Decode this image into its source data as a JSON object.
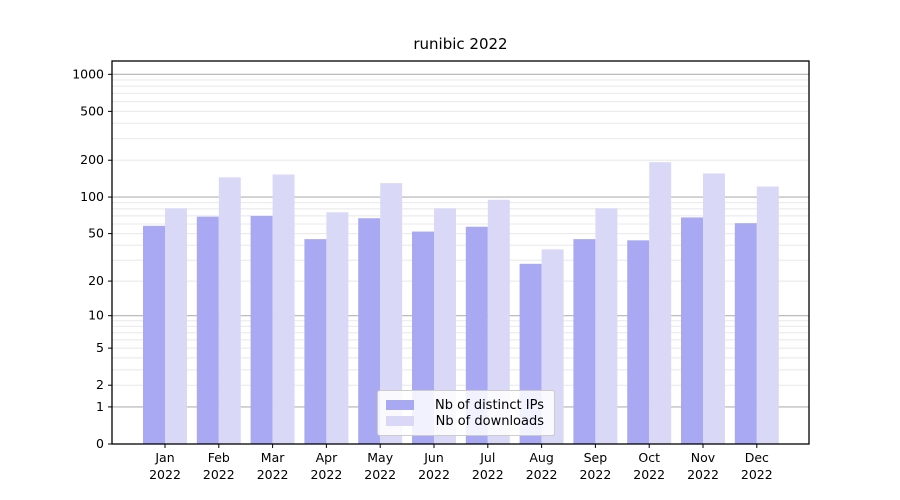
{
  "chart_data": {
    "type": "bar",
    "title": "runibic 2022",
    "xlabel": "",
    "ylabel": "",
    "yscale": "log1p",
    "ylim": [
      0,
      1283
    ],
    "yticks": [
      0,
      1,
      2,
      5,
      10,
      20,
      50,
      100,
      200,
      500,
      1000
    ],
    "grid": "on",
    "legend_position": "lower-center-inside",
    "categories": [
      "Jan",
      "Feb",
      "Mar",
      "Apr",
      "May",
      "Jun",
      "Jul",
      "Aug",
      "Sep",
      "Oct",
      "Nov",
      "Dec"
    ],
    "year_label": "2022",
    "series": [
      {
        "name": "Nb of distinct IPs",
        "color": "#a9a9f3",
        "values": [
          58,
          69,
          70,
          45,
          67,
          52,
          57,
          28,
          45,
          44,
          68,
          61
        ]
      },
      {
        "name": "Nb of downloads",
        "color": "#d9d9f7",
        "values": [
          81,
          145,
          153,
          75,
          130,
          81,
          95,
          37,
          81,
          193,
          156,
          122
        ]
      }
    ],
    "colors": {
      "major_grid": "#b2b2b2",
      "minor_grid": "#e8e8e8",
      "spine": "#000000",
      "tick_label": "#000000"
    }
  }
}
